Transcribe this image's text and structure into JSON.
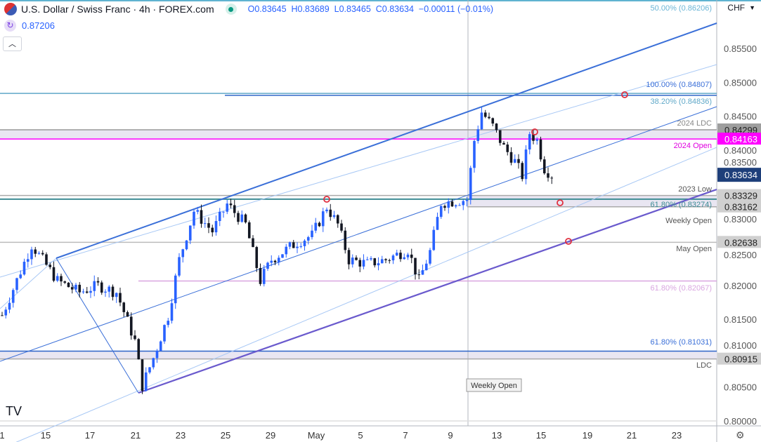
{
  "header": {
    "symbol_title": "U.S. Dollar / Swiss Franc · 4h · FOREX.com",
    "open": "O0.83645",
    "high": "H0.83689",
    "low": "L0.83465",
    "close": "C0.83634",
    "change": "−0.00011 (−0.01%)",
    "indicator_value": "0.87206",
    "currency": "CHF",
    "collapse_icon": "chevron-up",
    "fib_top": "50.00% (0.86206)"
  },
  "colors": {
    "up": "#2962ff",
    "down": "#131722",
    "channel": "#3a6fd8",
    "magenta": "#ff00ff",
    "teal": "#3d8c94",
    "pink": "#d9a6e0",
    "light": "#a8c8f5"
  },
  "chart_data": {
    "type": "candlestick",
    "title": "U.S. Dollar / Swiss Franc · 4h",
    "ylim": [
      0.8,
      0.858
    ],
    "y_ticks": [
      "0.85500",
      "0.85000",
      "0.84500",
      "0.84000",
      "0.83500",
      "0.83000",
      "0.82500",
      "0.82000",
      "0.81500",
      "0.81000",
      "0.80500",
      "0.80000"
    ],
    "x_ticks": [
      "1",
      "15",
      "17",
      "21",
      "23",
      "25",
      "29",
      "May",
      "5",
      "7",
      "9",
      "13",
      "15",
      "19",
      "21",
      "23"
    ],
    "price_path": [
      [
        0,
        0.8156
      ],
      [
        8,
        0.826
      ],
      [
        15,
        0.8207
      ],
      [
        21,
        0.819
      ],
      [
        26,
        0.82
      ],
      [
        31,
        0.819
      ],
      [
        36,
        0.8118
      ],
      [
        38,
        0.8052
      ],
      [
        41,
        0.8093
      ],
      [
        45,
        0.8155
      ],
      [
        48,
        0.8238
      ],
      [
        52,
        0.831
      ],
      [
        57,
        0.828
      ],
      [
        61,
        0.832
      ],
      [
        66,
        0.829
      ],
      [
        70,
        0.8207
      ],
      [
        73,
        0.8238
      ],
      [
        80,
        0.8264
      ],
      [
        84,
        0.8274
      ],
      [
        88,
        0.8316
      ],
      [
        91,
        0.829
      ],
      [
        94,
        0.8238
      ],
      [
        99,
        0.8232
      ],
      [
        104,
        0.8238
      ],
      [
        110,
        0.8253
      ],
      [
        113,
        0.8207
      ],
      [
        116,
        0.825
      ],
      [
        119,
        0.8322
      ],
      [
        126,
        0.8327
      ],
      [
        128,
        0.8414
      ],
      [
        130,
        0.8456
      ],
      [
        133,
        0.8435
      ],
      [
        136,
        0.8404
      ],
      [
        139,
        0.8383
      ],
      [
        141,
        0.8362
      ],
      [
        143,
        0.8425
      ],
      [
        145,
        0.8414
      ],
      [
        147,
        0.8373
      ],
      [
        149,
        0.8363
      ]
    ],
    "levels": [
      {
        "label": "100.00% (0.84807)",
        "price": 0.84807
      },
      {
        "label": "38.20% (0.84836)",
        "price": 0.84836
      },
      {
        "label": "2024 LDC",
        "price": 0.84299,
        "tag": "0.84299"
      },
      {
        "label": "2024 Open",
        "price": 0.84163,
        "tag": "0.84163"
      },
      {
        "label": "2023 Low",
        "price": 0.83329,
        "tag": "0.83329"
      },
      {
        "label": "61.80% (0.83274)",
        "price": 0.83274
      },
      {
        "label": "Weekly Open",
        "price": 0.83162,
        "tag": "0.83162"
      },
      {
        "label": "May Open",
        "price": 0.82638,
        "tag": "0.82638"
      },
      {
        "label": "61.80% (0.82067)",
        "price": 0.82067
      },
      {
        "label": "61.80% (0.81031)",
        "price": 0.81031
      },
      {
        "label": "LDC",
        "price": 0.80915,
        "tag": "0.80915"
      }
    ],
    "last_price": "0.83634",
    "vertical_label": "Weekly Open"
  }
}
